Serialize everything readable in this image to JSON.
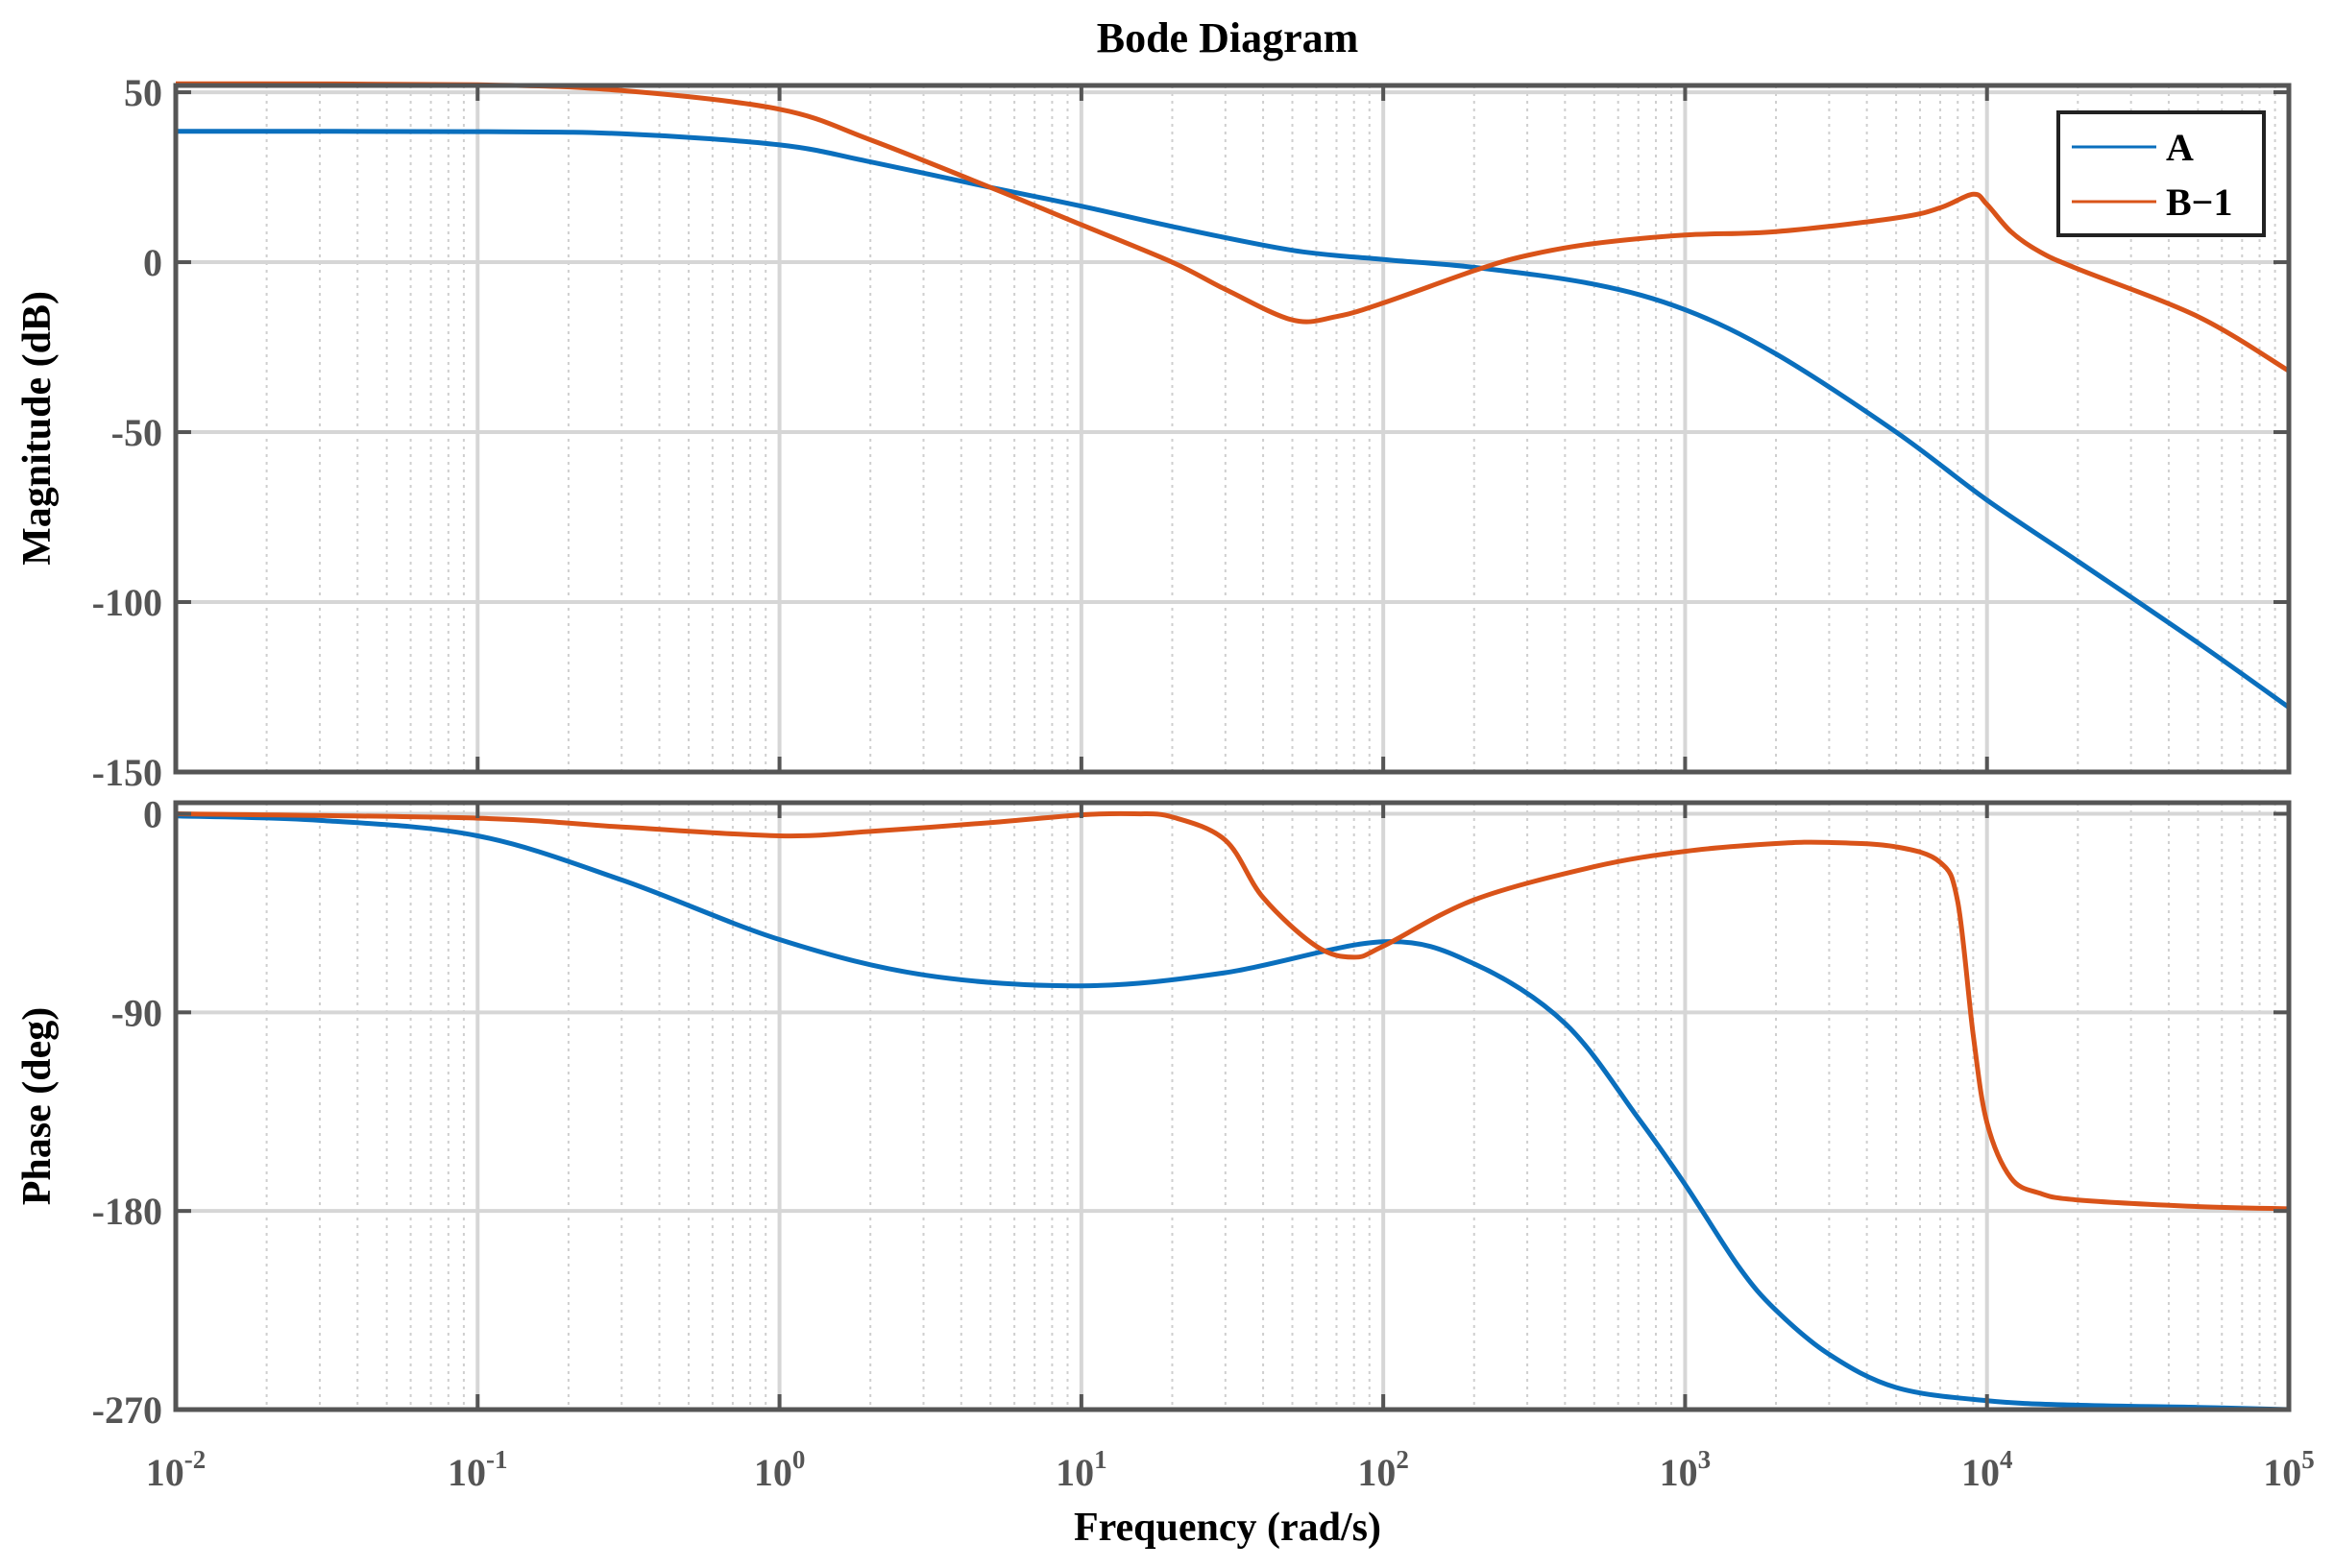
{
  "chart_data": {
    "type": "line",
    "title": "Bode Diagram",
    "xlabel": "Frequency  (rad/s)",
    "xscale": "log",
    "xlim": [
      0.01,
      100000
    ],
    "x_tick_labels": [
      {
        "base": "10",
        "exp": "-2"
      },
      {
        "base": "10",
        "exp": "-1"
      },
      {
        "base": "10",
        "exp": "0"
      },
      {
        "base": "10",
        "exp": "1"
      },
      {
        "base": "10",
        "exp": "2"
      },
      {
        "base": "10",
        "exp": "3"
      },
      {
        "base": "10",
        "exp": "4"
      },
      {
        "base": "10",
        "exp": "5"
      }
    ],
    "grid": true,
    "legend": {
      "location": "top-right",
      "entries": [
        "A",
        "B−1"
      ]
    },
    "colors": {
      "A": "#0a6fbd",
      "B": "#d95319"
    },
    "panels": [
      {
        "name": "magnitude",
        "ylabel": "Magnitude (dB)",
        "ylim": [
          -150,
          52
        ],
        "yticks": [
          50,
          0,
          -50,
          -100,
          -150
        ],
        "ytick_labels": [
          "50",
          "0",
          "-50",
          "-100",
          "-150"
        ],
        "series": [
          {
            "name": "A",
            "x": [
              0.01,
              0.1,
              0.3,
              1,
              2,
              5,
              10,
              20,
              50,
              100,
              200,
              500,
              1000,
              2000,
              5000,
              10000,
              20000,
              50000,
              100000
            ],
            "y": [
              38.5,
              38.4,
              37.8,
              34.5,
              29.5,
              22,
              16.5,
              10.5,
              3.5,
              0.8,
              -1.5,
              -6.5,
              -14,
              -27,
              -50,
              -70,
              -88,
              -112,
              -131
            ]
          },
          {
            "name": "B−1",
            "x": [
              0.01,
              0.1,
              0.3,
              1,
              2,
              5,
              10,
              20,
              30,
              50,
              70,
              100,
              200,
              300,
              500,
              1000,
              2000,
              5000,
              7000,
              9000,
              10000,
              12000,
              15000,
              20000,
              50000,
              100000
            ],
            "y": [
              52.5,
              52.2,
              50.5,
              45,
              36,
              22,
              11,
              0,
              -8,
              -17,
              -16,
              -12,
              -2.5,
              2,
              5.5,
              8,
              9,
              13,
              16,
              20,
              17,
              9,
              3,
              -2,
              -16,
              -32
            ]
          }
        ]
      },
      {
        "name": "phase",
        "ylabel": "Phase (deg)",
        "ylim": [
          -270,
          5
        ],
        "yticks": [
          0,
          -90,
          -180,
          -270
        ],
        "ytick_labels": [
          "0",
          "-90",
          "-180",
          "-270"
        ],
        "series": [
          {
            "name": "A",
            "x": [
              0.01,
              0.03,
              0.1,
              0.3,
              1,
              3,
              10,
              30,
              100,
              200,
              400,
              700,
              1000,
              1500,
              2000,
              3000,
              5000,
              10000,
              20000,
              50000,
              100000
            ],
            "y": [
              -1,
              -3,
              -10,
              -30,
              -57,
              -73,
              -78,
              -72,
              -58,
              -68,
              -95,
              -138,
              -168,
              -205,
              -225,
              -245,
              -260,
              -266,
              -268,
              -269,
              -270
            ]
          },
          {
            "name": "B−1",
            "x": [
              0.01,
              0.1,
              0.3,
              1,
              2,
              5,
              10,
              15,
              20,
              30,
              40,
              60,
              80,
              100,
              200,
              500,
              1000,
              2000,
              3000,
              5000,
              7000,
              8000,
              9000,
              10000,
              12000,
              15000,
              20000,
              50000,
              100000
            ],
            "y": [
              0,
              -2,
              -6,
              -10,
              -8,
              -4,
              -0.5,
              0,
              -1.5,
              -12,
              -38,
              -60,
              -65,
              -60,
              -39,
              -24,
              -17,
              -13.5,
              -13,
              -15,
              -22,
              -40,
              -100,
              -140,
              -165,
              -172,
              -175,
              -178,
              -179
            ]
          }
        ]
      }
    ]
  }
}
